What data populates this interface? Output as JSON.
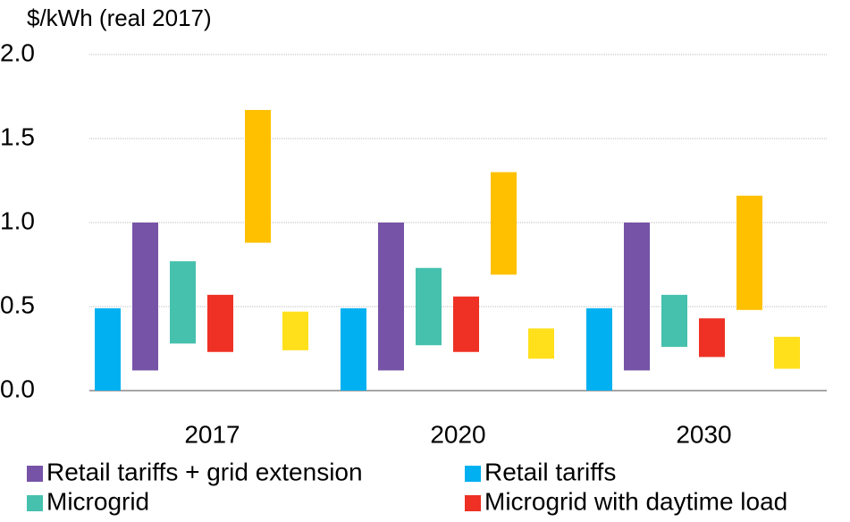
{
  "chart_data": {
    "type": "floating-bar",
    "y_axis_label": "$/kWh (real 2017)",
    "categories": [
      "2017",
      "2020",
      "2030"
    ],
    "ylim": [
      0,
      2
    ],
    "yticks": [
      {
        "value": 0,
        "label": "0.0"
      },
      {
        "value": 0.5,
        "label": "0.5"
      },
      {
        "value": 1,
        "label": "1.0"
      },
      {
        "value": 1.5,
        "label": "1.5"
      },
      {
        "value": 2,
        "label": "2.0"
      }
    ],
    "grid": true,
    "series": [
      {
        "name": "Retail tariffs",
        "color": "#00b0f0",
        "low": [
          0,
          0,
          0
        ],
        "high": [
          0.49,
          0.49,
          0.49
        ]
      },
      {
        "name": "Retail tariffs + grid extension",
        "color": "#7653a6",
        "low": [
          0.12,
          0.12,
          0.12
        ],
        "high": [
          1.0,
          1.0,
          1.0
        ]
      },
      {
        "name": "Microgrid",
        "color": "#45c1ad",
        "low": [
          0.28,
          0.27,
          0.26
        ],
        "high": [
          0.77,
          0.73,
          0.57
        ]
      },
      {
        "name": "Microgrid with daytime load",
        "color": "#ee3124",
        "low": [
          0.23,
          0.23,
          0.2
        ],
        "high": [
          0.57,
          0.56,
          0.43
        ]
      },
      {
        "color": "#ffc000",
        "low": [
          0.88,
          0.69,
          0.48
        ],
        "high": [
          1.67,
          1.3,
          1.16
        ]
      },
      {
        "color": "#ffe01b",
        "low": [
          0.24,
          0.19,
          0.13
        ],
        "high": [
          0.47,
          0.37,
          0.32
        ]
      }
    ]
  }
}
